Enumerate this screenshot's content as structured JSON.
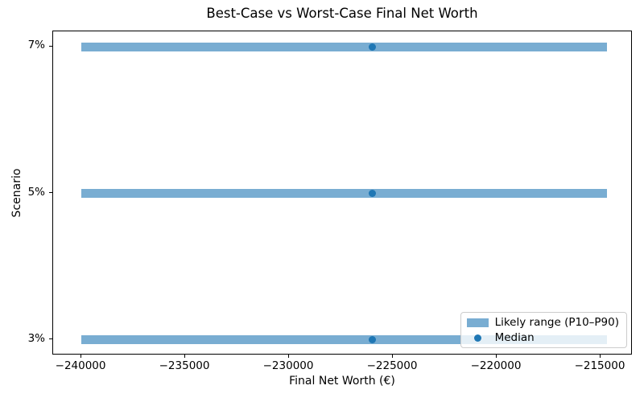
{
  "chart_data": {
    "type": "bar",
    "orientation": "horizontal",
    "title": "Best-Case vs Worst-Case Final Net Worth",
    "xlabel": "Final Net Worth (€)",
    "ylabel": "Scenario",
    "categories": [
      "7%",
      "5%",
      "3%"
    ],
    "series": [
      {
        "name": "Likely range (P10–P90)",
        "type": "range_bar",
        "p10": [
          -240000,
          -240000,
          -240000
        ],
        "p90": [
          -214700,
          -214700,
          -214700
        ]
      },
      {
        "name": "Median",
        "type": "scatter",
        "values": [
          -226000,
          -226000,
          -226000
        ]
      }
    ],
    "xlim": [
      -241360,
      -213450
    ],
    "xticks": [
      -240000,
      -235000,
      -230000,
      -225000,
      -220000,
      -215000
    ],
    "xtick_labels": [
      "−240000",
      "−235000",
      "−230000",
      "−225000",
      "−220000",
      "−215000"
    ],
    "grid": false,
    "legend_position": "lower right",
    "colors": {
      "range_bar": "#79add2",
      "median": "#1f77b4",
      "spine": "#000000",
      "legend_border": "#cccccc"
    }
  }
}
